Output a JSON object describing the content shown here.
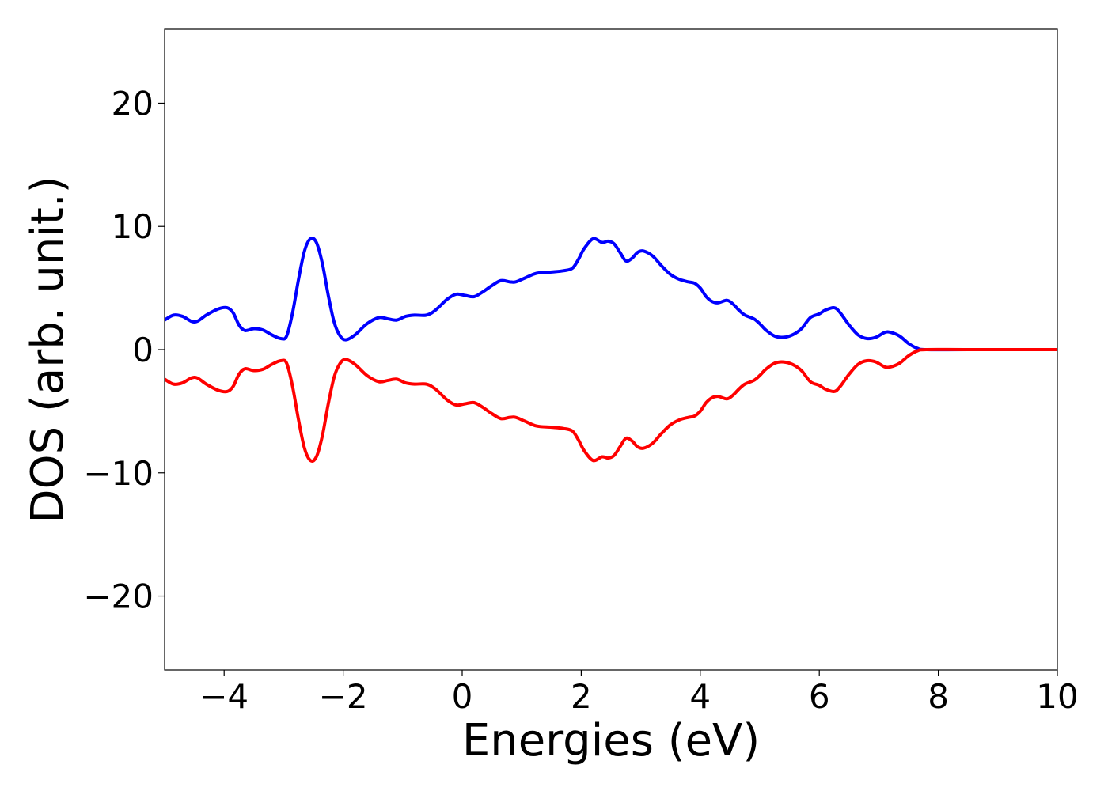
{
  "chart_data": {
    "type": "line",
    "title": "",
    "xlabel": "Energies (eV)",
    "ylabel": "DOS (arb. unit.)",
    "xlim": [
      -5,
      10
    ],
    "ylim": [
      -26,
      26
    ],
    "xticks": [
      -4,
      -2,
      0,
      2,
      4,
      6,
      8,
      10
    ],
    "xtick_labels": [
      "−4",
      "−2",
      "0",
      "2",
      "4",
      "6",
      "8",
      "10"
    ],
    "yticks": [
      -20,
      -10,
      0,
      10,
      20
    ],
    "ytick_labels": [
      "−20",
      "−10",
      "0",
      "10",
      "20"
    ],
    "grid": false,
    "legend": false,
    "series": [
      {
        "color": "#0000ff",
        "points": [
          [
            -5.0,
            2.4
          ],
          [
            -4.85,
            2.8
          ],
          [
            -4.7,
            2.7
          ],
          [
            -4.55,
            2.3
          ],
          [
            -4.45,
            2.3
          ],
          [
            -4.3,
            2.8
          ],
          [
            -4.1,
            3.3
          ],
          [
            -3.95,
            3.4
          ],
          [
            -3.85,
            3.0
          ],
          [
            -3.75,
            2.0
          ],
          [
            -3.65,
            1.55
          ],
          [
            -3.5,
            1.7
          ],
          [
            -3.35,
            1.6
          ],
          [
            -3.2,
            1.2
          ],
          [
            -3.05,
            0.9
          ],
          [
            -2.95,
            1.1
          ],
          [
            -2.85,
            3.0
          ],
          [
            -2.75,
            5.7
          ],
          [
            -2.65,
            8.0
          ],
          [
            -2.55,
            9.0
          ],
          [
            -2.45,
            8.7
          ],
          [
            -2.35,
            7.0
          ],
          [
            -2.25,
            4.4
          ],
          [
            -2.15,
            2.2
          ],
          [
            -2.05,
            1.1
          ],
          [
            -1.95,
            0.8
          ],
          [
            -1.8,
            1.2
          ],
          [
            -1.6,
            2.1
          ],
          [
            -1.4,
            2.6
          ],
          [
            -1.25,
            2.5
          ],
          [
            -1.1,
            2.4
          ],
          [
            -0.95,
            2.7
          ],
          [
            -0.8,
            2.8
          ],
          [
            -0.6,
            2.8
          ],
          [
            -0.45,
            3.2
          ],
          [
            -0.25,
            4.1
          ],
          [
            -0.1,
            4.5
          ],
          [
            0.05,
            4.4
          ],
          [
            0.2,
            4.3
          ],
          [
            0.35,
            4.7
          ],
          [
            0.5,
            5.2
          ],
          [
            0.65,
            5.6
          ],
          [
            0.8,
            5.5
          ],
          [
            0.9,
            5.5
          ],
          [
            1.05,
            5.8
          ],
          [
            1.25,
            6.2
          ],
          [
            1.5,
            6.3
          ],
          [
            1.7,
            6.4
          ],
          [
            1.85,
            6.6
          ],
          [
            1.95,
            7.3
          ],
          [
            2.05,
            8.2
          ],
          [
            2.2,
            9.0
          ],
          [
            2.35,
            8.7
          ],
          [
            2.45,
            8.8
          ],
          [
            2.55,
            8.6
          ],
          [
            2.65,
            7.9
          ],
          [
            2.75,
            7.2
          ],
          [
            2.85,
            7.4
          ],
          [
            2.95,
            7.9
          ],
          [
            3.05,
            8.0
          ],
          [
            3.2,
            7.6
          ],
          [
            3.35,
            6.8
          ],
          [
            3.5,
            6.1
          ],
          [
            3.65,
            5.7
          ],
          [
            3.8,
            5.5
          ],
          [
            3.9,
            5.4
          ],
          [
            4.0,
            5.0
          ],
          [
            4.1,
            4.3
          ],
          [
            4.2,
            3.9
          ],
          [
            4.3,
            3.8
          ],
          [
            4.45,
            4.0
          ],
          [
            4.55,
            3.7
          ],
          [
            4.65,
            3.2
          ],
          [
            4.75,
            2.8
          ],
          [
            4.9,
            2.5
          ],
          [
            5.0,
            2.1
          ],
          [
            5.1,
            1.6
          ],
          [
            5.25,
            1.1
          ],
          [
            5.4,
            1.0
          ],
          [
            5.55,
            1.2
          ],
          [
            5.7,
            1.7
          ],
          [
            5.85,
            2.6
          ],
          [
            6.0,
            2.9
          ],
          [
            6.1,
            3.2
          ],
          [
            6.25,
            3.4
          ],
          [
            6.35,
            3.0
          ],
          [
            6.5,
            2.0
          ],
          [
            6.65,
            1.2
          ],
          [
            6.8,
            0.9
          ],
          [
            6.95,
            1.0
          ],
          [
            7.1,
            1.4
          ],
          [
            7.2,
            1.4
          ],
          [
            7.35,
            1.1
          ],
          [
            7.5,
            0.5
          ],
          [
            7.65,
            0.1
          ],
          [
            7.8,
            0.0
          ],
          [
            8.5,
            0.0
          ],
          [
            10.0,
            0.0
          ]
        ]
      },
      {
        "color": "#ff0000",
        "points": [
          [
            -5.0,
            -2.4
          ],
          [
            -4.85,
            -2.8
          ],
          [
            -4.7,
            -2.7
          ],
          [
            -4.55,
            -2.3
          ],
          [
            -4.45,
            -2.3
          ],
          [
            -4.3,
            -2.8
          ],
          [
            -4.1,
            -3.3
          ],
          [
            -3.95,
            -3.4
          ],
          [
            -3.85,
            -3.0
          ],
          [
            -3.75,
            -2.0
          ],
          [
            -3.65,
            -1.55
          ],
          [
            -3.5,
            -1.7
          ],
          [
            -3.35,
            -1.6
          ],
          [
            -3.2,
            -1.2
          ],
          [
            -3.05,
            -0.9
          ],
          [
            -2.95,
            -1.1
          ],
          [
            -2.85,
            -3.0
          ],
          [
            -2.75,
            -5.7
          ],
          [
            -2.65,
            -8.0
          ],
          [
            -2.55,
            -9.0
          ],
          [
            -2.45,
            -8.7
          ],
          [
            -2.35,
            -7.0
          ],
          [
            -2.25,
            -4.4
          ],
          [
            -2.15,
            -2.2
          ],
          [
            -2.05,
            -1.1
          ],
          [
            -1.95,
            -0.8
          ],
          [
            -1.8,
            -1.2
          ],
          [
            -1.6,
            -2.1
          ],
          [
            -1.4,
            -2.6
          ],
          [
            -1.25,
            -2.5
          ],
          [
            -1.1,
            -2.4
          ],
          [
            -0.95,
            -2.7
          ],
          [
            -0.8,
            -2.8
          ],
          [
            -0.6,
            -2.8
          ],
          [
            -0.45,
            -3.2
          ],
          [
            -0.25,
            -4.1
          ],
          [
            -0.1,
            -4.5
          ],
          [
            0.05,
            -4.4
          ],
          [
            0.2,
            -4.3
          ],
          [
            0.35,
            -4.7
          ],
          [
            0.5,
            -5.2
          ],
          [
            0.65,
            -5.6
          ],
          [
            0.8,
            -5.5
          ],
          [
            0.9,
            -5.5
          ],
          [
            1.05,
            -5.8
          ],
          [
            1.25,
            -6.2
          ],
          [
            1.5,
            -6.3
          ],
          [
            1.7,
            -6.4
          ],
          [
            1.85,
            -6.6
          ],
          [
            1.95,
            -7.3
          ],
          [
            2.05,
            -8.2
          ],
          [
            2.2,
            -9.0
          ],
          [
            2.35,
            -8.7
          ],
          [
            2.45,
            -8.8
          ],
          [
            2.55,
            -8.6
          ],
          [
            2.65,
            -7.9
          ],
          [
            2.75,
            -7.2
          ],
          [
            2.85,
            -7.4
          ],
          [
            2.95,
            -7.9
          ],
          [
            3.05,
            -8.0
          ],
          [
            3.2,
            -7.6
          ],
          [
            3.35,
            -6.8
          ],
          [
            3.5,
            -6.1
          ],
          [
            3.65,
            -5.7
          ],
          [
            3.8,
            -5.5
          ],
          [
            3.9,
            -5.4
          ],
          [
            4.0,
            -5.0
          ],
          [
            4.1,
            -4.3
          ],
          [
            4.2,
            -3.9
          ],
          [
            4.3,
            -3.8
          ],
          [
            4.45,
            -4.0
          ],
          [
            4.55,
            -3.7
          ],
          [
            4.65,
            -3.2
          ],
          [
            4.75,
            -2.8
          ],
          [
            4.9,
            -2.5
          ],
          [
            5.0,
            -2.1
          ],
          [
            5.1,
            -1.6
          ],
          [
            5.25,
            -1.1
          ],
          [
            5.4,
            -1.0
          ],
          [
            5.55,
            -1.2
          ],
          [
            5.7,
            -1.7
          ],
          [
            5.85,
            -2.6
          ],
          [
            6.0,
            -2.9
          ],
          [
            6.1,
            -3.2
          ],
          [
            6.25,
            -3.4
          ],
          [
            6.35,
            -3.0
          ],
          [
            6.5,
            -2.0
          ],
          [
            6.65,
            -1.2
          ],
          [
            6.8,
            -0.9
          ],
          [
            6.95,
            -1.0
          ],
          [
            7.1,
            -1.4
          ],
          [
            7.2,
            -1.4
          ],
          [
            7.35,
            -1.1
          ],
          [
            7.5,
            -0.5
          ],
          [
            7.65,
            -0.1
          ],
          [
            7.8,
            0.0
          ],
          [
            8.5,
            0.0
          ],
          [
            10.0,
            0.0
          ]
        ]
      }
    ]
  }
}
